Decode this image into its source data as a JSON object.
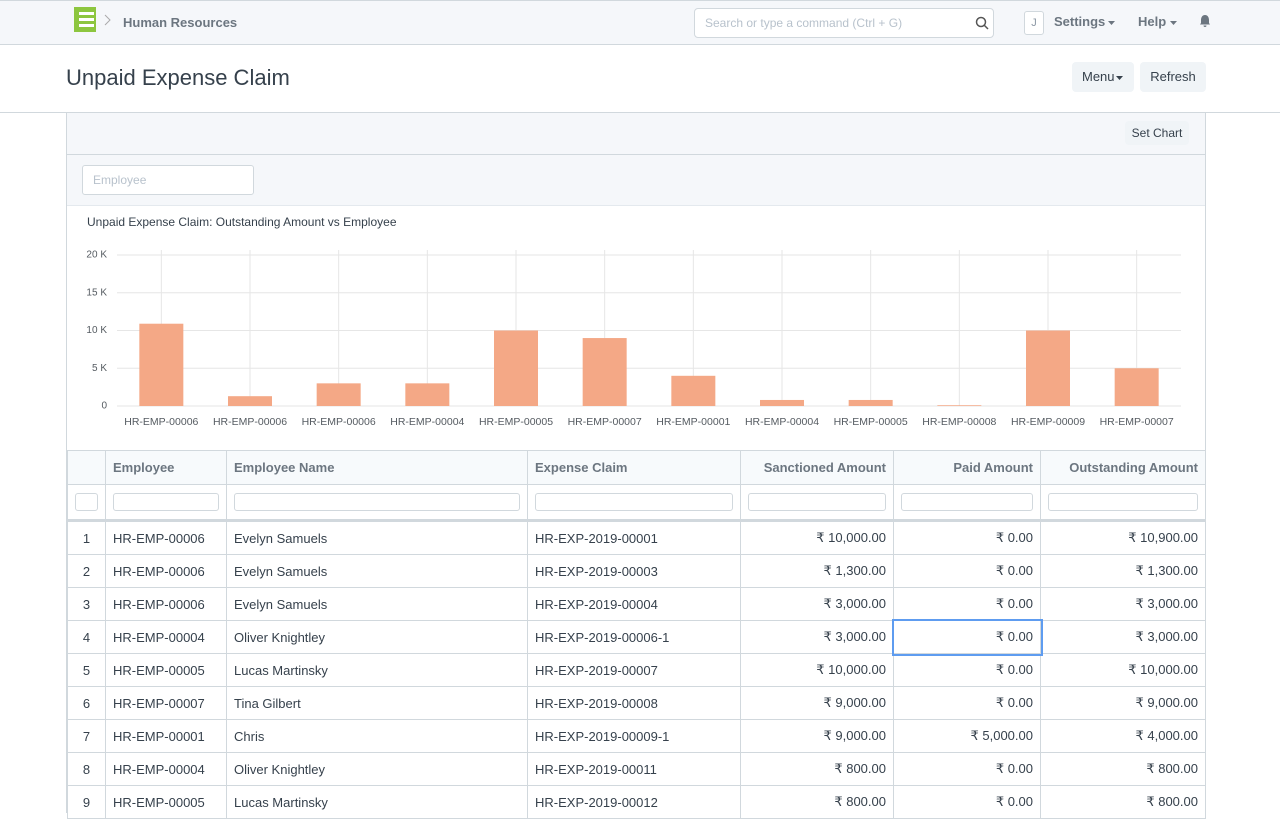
{
  "navbar": {
    "breadcrumb": "Human Resources",
    "search_placeholder": "Search or type a command (Ctrl + G)",
    "avatar": "J",
    "settings": "Settings",
    "help": "Help"
  },
  "page_head": {
    "title": "Unpaid Expense Claim",
    "menu": "Menu",
    "refresh": "Refresh"
  },
  "report": {
    "set_chart": "Set Chart",
    "filter_placeholder": "Employee"
  },
  "chart_data": {
    "type": "bar",
    "title": "Unpaid Expense Claim: Outstanding Amount vs Employee",
    "categories": [
      "HR-EMP-00006",
      "HR-EMP-00006",
      "HR-EMP-00006",
      "HR-EMP-00004",
      "HR-EMP-00005",
      "HR-EMP-00007",
      "HR-EMP-00001",
      "HR-EMP-00004",
      "HR-EMP-00005",
      "HR-EMP-00008",
      "HR-EMP-00009",
      "HR-EMP-00007"
    ],
    "values": [
      10900,
      1300,
      3000,
      3000,
      10000,
      9000,
      4000,
      800,
      800,
      100,
      10000,
      5000
    ],
    "color": "#f4a886",
    "ylim": [
      0,
      20000
    ],
    "yticks": [
      0,
      {
        "value": 5000,
        "label": "5 K"
      },
      {
        "value": 10000,
        "label": "10 K"
      },
      {
        "value": 15000,
        "label": "15 K"
      },
      {
        "value": 20000,
        "label": "20 K"
      }
    ],
    "grid": true
  },
  "table": {
    "columns": [
      "Employee",
      "Employee Name",
      "Expense Claim",
      "Sanctioned Amount",
      "Paid Amount",
      "Outstanding Amount"
    ],
    "rows": [
      [
        "1",
        "HR-EMP-00006",
        "Evelyn Samuels",
        "HR-EXP-2019-00001",
        "₹ 10,000.00",
        "₹ 0.00",
        "₹ 10,900.00"
      ],
      [
        "2",
        "HR-EMP-00006",
        "Evelyn Samuels",
        "HR-EXP-2019-00003",
        "₹ 1,300.00",
        "₹ 0.00",
        "₹ 1,300.00"
      ],
      [
        "3",
        "HR-EMP-00006",
        "Evelyn Samuels",
        "HR-EXP-2019-00004",
        "₹ 3,000.00",
        "₹ 0.00",
        "₹ 3,000.00"
      ],
      [
        "4",
        "HR-EMP-00004",
        "Oliver Knightley",
        "HR-EXP-2019-00006-1",
        "₹ 3,000.00",
        "₹ 0.00",
        "₹ 3,000.00"
      ],
      [
        "5",
        "HR-EMP-00005",
        "Lucas Martinsky",
        "HR-EXP-2019-00007",
        "₹ 10,000.00",
        "₹ 0.00",
        "₹ 10,000.00"
      ],
      [
        "6",
        "HR-EMP-00007",
        "Tina Gilbert",
        "HR-EXP-2019-00008",
        "₹ 9,000.00",
        "₹ 0.00",
        "₹ 9,000.00"
      ],
      [
        "7",
        "HR-EMP-00001",
        "Chris",
        "HR-EXP-2019-00009-1",
        "₹ 9,000.00",
        "₹ 5,000.00",
        "₹ 4,000.00"
      ],
      [
        "8",
        "HR-EMP-00004",
        "Oliver Knightley",
        "HR-EXP-2019-00011",
        "₹ 800.00",
        "₹ 0.00",
        "₹ 800.00"
      ],
      [
        "9",
        "HR-EMP-00005",
        "Lucas Martinsky",
        "HR-EXP-2019-00012",
        "₹ 800.00",
        "₹ 0.00",
        "₹ 800.00"
      ]
    ]
  }
}
